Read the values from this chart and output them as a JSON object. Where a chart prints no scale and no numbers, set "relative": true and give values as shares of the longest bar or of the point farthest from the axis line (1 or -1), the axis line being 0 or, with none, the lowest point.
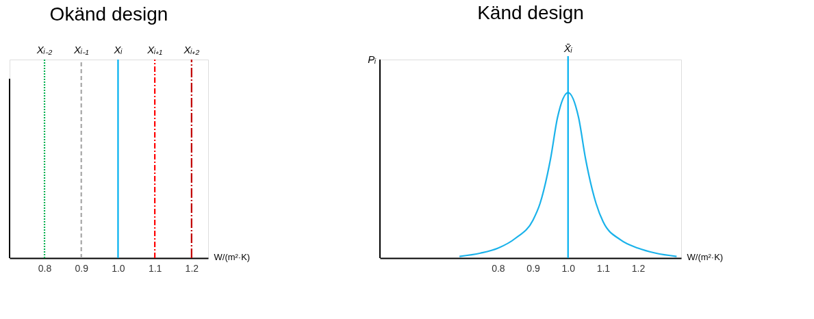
{
  "chart_data": [
    {
      "type": "line",
      "title": "Okänd design",
      "xlabel": "W/(m²·K)",
      "relative": true,
      "xlim": [
        0.705,
        1.245
      ],
      "xticks": [
        0.8,
        0.9,
        {
          "value": 1.0,
          "label": "1.0"
        },
        1.1,
        1.2
      ],
      "tick_labels": "x",
      "grid": false,
      "marker": "none",
      "series": [
        {
          "name": "Xᵢ₋₂",
          "x": [
            0.8,
            0.8
          ],
          "values": [
            0,
            1
          ],
          "color": "#00b050",
          "line_style": "dotted"
        },
        {
          "name": "Xᵢ₋₁",
          "x": [
            0.9,
            0.9
          ],
          "values": [
            0,
            1
          ],
          "color": "#a6a6a6",
          "line_style": "dashed"
        },
        {
          "name": "Xᵢ",
          "x": [
            1.0,
            1.0
          ],
          "values": [
            0,
            1
          ],
          "color": "#00b0f0",
          "line_style": "solid"
        },
        {
          "name": "Xᵢ₊₁",
          "x": [
            1.1,
            1.1
          ],
          "values": [
            0,
            1
          ],
          "color": "#ff0000",
          "line_style": "dashdot"
        },
        {
          "name": "Xᵢ₊₂",
          "x": [
            1.2,
            1.2
          ],
          "values": [
            0,
            1
          ],
          "color": "#c00000",
          "line_style": "longdashdot"
        }
      ]
    },
    {
      "type": "line",
      "title": "Känd design",
      "xlabel": "W/(m²·K)",
      "ylabel": "Pᵢ",
      "relative": true,
      "xlim": [
        0.463,
        1.323
      ],
      "xticks": [
        0.8,
        0.9,
        {
          "value": 1.0,
          "label": "1.0"
        },
        1.1,
        1.2
      ],
      "tick_labels": "x",
      "grid": false,
      "marker": "none",
      "x": [
        0.69,
        0.75,
        0.8,
        0.85,
        0.9,
        0.92,
        0.95,
        0.97,
        1.0,
        1.03,
        1.05,
        1.08,
        1.1,
        1.15,
        1.2,
        1.25,
        1.31
      ],
      "series": [
        {
          "color": "#1ab2ea",
          "values": [
            0.01,
            0.03,
            0.06,
            0.12,
            0.23,
            0.33,
            0.6,
            0.85,
            1,
            0.85,
            0.6,
            0.33,
            0.22,
            0.11,
            0.06,
            0.03,
            0.01
          ]
        }
      ],
      "ref_lines": [
        {
          "axis": "x",
          "value": 1.0,
          "label": "X̄ᵢ",
          "color": "#00b0f0",
          "line_style": "solid"
        }
      ]
    }
  ]
}
